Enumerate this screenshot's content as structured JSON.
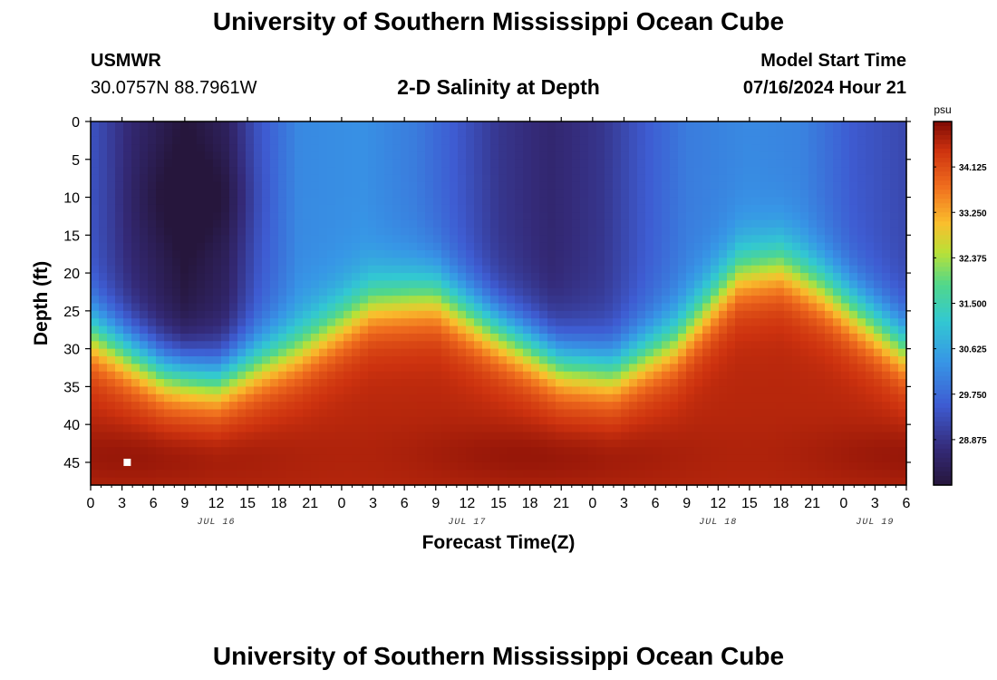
{
  "page": {
    "title": "University of Southern Mississippi Ocean Cube",
    "footer_title": "University of Southern Mississippi Ocean Cube",
    "station": "USMWR",
    "coordinates": "30.0757N  88.7961W",
    "subtitle": "2-D Salinity at Depth",
    "model_start_label": "Model Start Time",
    "model_start_value": "07/16/2024 Hour 21"
  },
  "chart_data": {
    "type": "heatmap",
    "title": "2-D Salinity at Depth",
    "xlabel": "Forecast Time(Z)",
    "ylabel": "Depth (ft)",
    "units": "psu",
    "x_range_hours": [
      0,
      78
    ],
    "x_ticks": [
      "0",
      "3",
      "6",
      "9",
      "12",
      "15",
      "18",
      "21",
      "0",
      "3",
      "6",
      "9",
      "12",
      "15",
      "18",
      "21",
      "0",
      "3",
      "6",
      "9",
      "12",
      "15",
      "18",
      "21",
      "0",
      "3",
      "6"
    ],
    "date_labels": [
      {
        "hour": 12,
        "label": "JUL 16"
      },
      {
        "hour": 36,
        "label": "JUL 17"
      },
      {
        "hour": 60,
        "label": "JUL 18"
      },
      {
        "hour": 75,
        "label": "JUL 19"
      }
    ],
    "y_range_ft": [
      0,
      48
    ],
    "y_ticks": [
      0,
      5,
      10,
      15,
      20,
      25,
      30,
      35,
      40,
      45
    ],
    "colorbar": {
      "label": "psu",
      "min": 28.0,
      "max": 35.0,
      "ticks": [
        "34.125",
        "33.250",
        "32.375",
        "31.500",
        "30.625",
        "29.750",
        "28.875"
      ],
      "tick_values": [
        34.125,
        33.25,
        32.375,
        31.5,
        30.625,
        29.75,
        28.875
      ]
    },
    "halocline_depth_ft": [
      {
        "hour": 0,
        "depth": 28
      },
      {
        "hour": 7,
        "depth": 33
      },
      {
        "hour": 12,
        "depth": 34
      },
      {
        "hour": 20,
        "depth": 30
      },
      {
        "hour": 27,
        "depth": 24
      },
      {
        "hour": 33,
        "depth": 23
      },
      {
        "hour": 38,
        "depth": 27
      },
      {
        "hour": 45,
        "depth": 32
      },
      {
        "hour": 50,
        "depth": 33
      },
      {
        "hour": 56,
        "depth": 29
      },
      {
        "hour": 62,
        "depth": 20
      },
      {
        "hour": 66,
        "depth": 19
      },
      {
        "hour": 70,
        "depth": 22
      },
      {
        "hour": 74,
        "depth": 26
      },
      {
        "hour": 78,
        "depth": 30
      }
    ],
    "surface_salinity_psu": [
      {
        "hour": 0,
        "value": 29.4
      },
      {
        "hour": 4,
        "value": 28.6
      },
      {
        "hour": 9,
        "value": 28.0
      },
      {
        "hour": 13,
        "value": 28.4
      },
      {
        "hour": 16,
        "value": 29.4
      },
      {
        "hour": 20,
        "value": 30.2
      },
      {
        "hour": 26,
        "value": 30.3
      },
      {
        "hour": 31,
        "value": 30.0
      },
      {
        "hour": 35,
        "value": 29.5
      },
      {
        "hour": 39,
        "value": 28.9
      },
      {
        "hour": 44,
        "value": 28.6
      },
      {
        "hour": 49,
        "value": 28.9
      },
      {
        "hour": 53,
        "value": 29.5
      },
      {
        "hour": 57,
        "value": 30.0
      },
      {
        "hour": 63,
        "value": 30.2
      },
      {
        "hour": 68,
        "value": 30.1
      },
      {
        "hour": 73,
        "value": 29.5
      },
      {
        "hour": 78,
        "value": 29.2
      }
    ],
    "bottom_salinity_psu": 34.6,
    "marker": {
      "hour": 3.5,
      "depth": 45
    }
  }
}
